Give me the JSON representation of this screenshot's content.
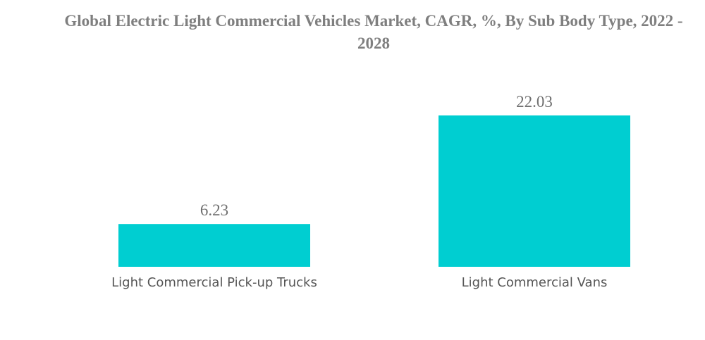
{
  "chart_data": {
    "type": "bar",
    "title": "Global Electric Light Commercial Vehicles Market, CAGR, %, By Sub Body Type, 2022 - 2028",
    "categories": [
      "Light Commercial Pick-up Trucks",
      "Light Commercial Vans"
    ],
    "values": [
      6.23,
      22.03
    ],
    "value_labels": [
      "6.23",
      "22.03"
    ],
    "xlabel": "",
    "ylabel": "",
    "ylim": [
      0,
      22.03
    ],
    "grid": false,
    "legend": "none",
    "bar_color": "#00ced1"
  }
}
